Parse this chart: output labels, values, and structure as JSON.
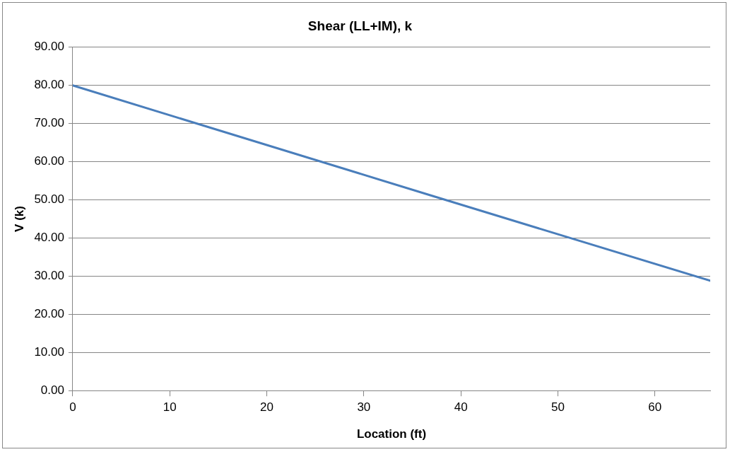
{
  "chart_data": {
    "type": "line",
    "title": "Shear (LL+IM), k",
    "xlabel": "Location (ft)",
    "ylabel": "V (k)",
    "x": [
      0,
      37.5,
      65.7
    ],
    "series": [
      {
        "color": "#4a7ebb",
        "values": [
          80,
          50.7,
          28.8
        ]
      }
    ],
    "xlim": [
      0,
      65.7
    ],
    "xticks": [
      0,
      10,
      20,
      30,
      40,
      50,
      60
    ],
    "ylim": [
      0,
      90
    ],
    "yticks": [
      {
        "value": 0,
        "label": "0.00"
      },
      {
        "value": 10,
        "label": "10.00"
      },
      {
        "value": 20,
        "label": "20.00"
      },
      {
        "value": 30,
        "label": "30.00"
      },
      {
        "value": 40,
        "label": "40.00"
      },
      {
        "value": 50,
        "label": "50.00"
      },
      {
        "value": 60,
        "label": "60.00"
      },
      {
        "value": 70,
        "label": "70.00"
      },
      {
        "value": 80,
        "label": "80.00"
      },
      {
        "value": 90,
        "label": "90.00"
      }
    ],
    "grid": "y",
    "legend": false,
    "marker": "none",
    "line_style": "solid"
  }
}
